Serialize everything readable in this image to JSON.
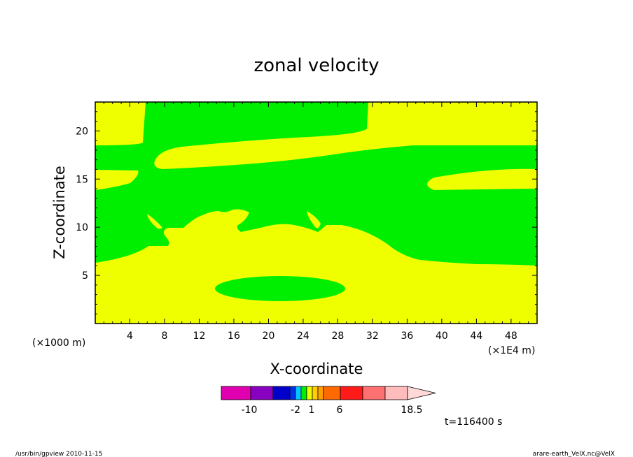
{
  "chart_data": {
    "type": "contour",
    "title": "zonal velocity",
    "xlabel": "X-coordinate",
    "ylabel": "Z-coordinate",
    "x_scale_label": "(×1E4 m)",
    "z_scale_label": "(×1000 m)",
    "xlim": [
      0,
      51
    ],
    "ylim": [
      0,
      23
    ],
    "x_ticks": [
      "4",
      "8",
      "12",
      "16",
      "20",
      "24",
      "28",
      "32",
      "36",
      "40",
      "44",
      "48"
    ],
    "y_ticks": [
      "5",
      "10",
      "15",
      "20"
    ],
    "fill_colors": {
      "positive": "#f0ff00",
      "negative": "#00ee00"
    },
    "time_label": "t=116400 s",
    "colorbar": {
      "tick_labels": [
        "-10",
        "-2",
        "1",
        "6",
        "18.5"
      ],
      "colors": [
        "#e000b0",
        "#8800c0",
        "#0000c8",
        "#0030e8",
        "#00c8ff",
        "#00ee00",
        "#f0ff00",
        "#ffd000",
        "#ffa000",
        "#ff6a00",
        "#ff1a1a",
        "#ff7070",
        "#ffbcbc",
        "#ffd8d8"
      ]
    }
  },
  "footer": {
    "left": "/usr/bin/gpview   2010-11-15",
    "right": "arare-earth_VelX.nc@VelX"
  }
}
